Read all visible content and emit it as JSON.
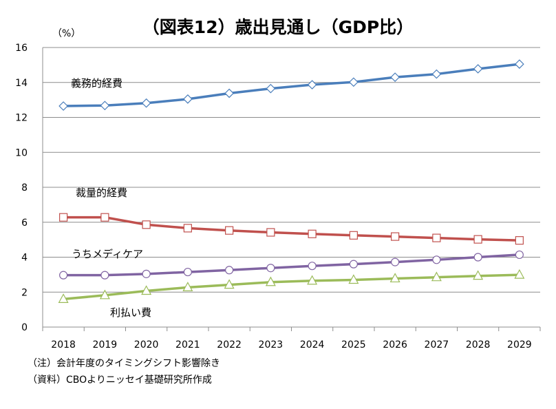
{
  "chart_data": {
    "type": "line",
    "title": "（図表12）歳出見通し（GDP比）",
    "ylabel": "（%）",
    "xlabel": "",
    "categories": [
      "2018",
      "2019",
      "2020",
      "2021",
      "2022",
      "2023",
      "2024",
      "2025",
      "2026",
      "2027",
      "2028",
      "2029"
    ],
    "yticks": [
      "0",
      "2",
      "4",
      "6",
      "8",
      "10",
      "12",
      "14",
      "16"
    ],
    "ylim": [
      0,
      16
    ],
    "grid": true,
    "legend": "none (series labeled inline)",
    "series": [
      {
        "name": "義務的経費",
        "color": "#4a7ebb",
        "marker": "diamond",
        "values": [
          12.65,
          12.68,
          12.82,
          13.05,
          13.38,
          13.65,
          13.87,
          14.02,
          14.3,
          14.48,
          14.78,
          15.05
        ]
      },
      {
        "name": "裁量的経費",
        "color": "#c0504d",
        "marker": "square",
        "values": [
          6.28,
          6.28,
          5.86,
          5.66,
          5.53,
          5.42,
          5.33,
          5.25,
          5.18,
          5.1,
          5.02,
          4.96
        ]
      },
      {
        "name": "うちメディケア",
        "color": "#8064a2",
        "marker": "circle",
        "values": [
          2.97,
          2.97,
          3.04,
          3.15,
          3.26,
          3.38,
          3.5,
          3.6,
          3.72,
          3.85,
          4.0,
          4.14
        ]
      },
      {
        "name": "利払い費",
        "color": "#9bbb59",
        "marker": "triangle",
        "values": [
          1.6,
          1.82,
          2.07,
          2.27,
          2.42,
          2.57,
          2.65,
          2.7,
          2.78,
          2.85,
          2.93,
          2.99
        ]
      }
    ]
  },
  "notes": {
    "note1": "（注）会計年度のタイミングシフト影響除き",
    "note2": "（資料）CBOよりニッセイ基礎研究所作成"
  }
}
